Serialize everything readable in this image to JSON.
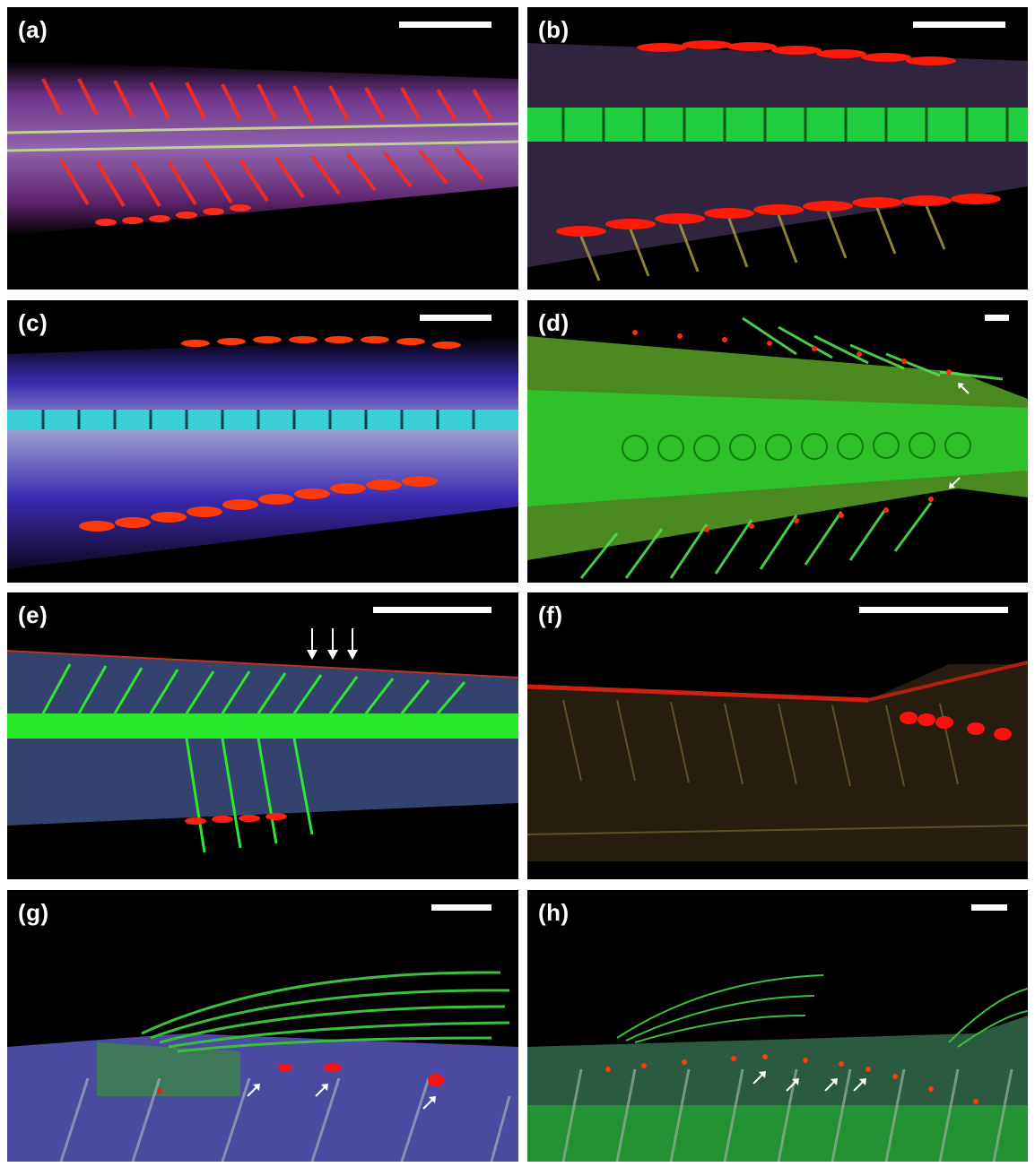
{
  "figure": {
    "panels": [
      {
        "label": "(a)",
        "stain": "magenta-red",
        "scalebar": true
      },
      {
        "label": "(b)",
        "stain": "green-red",
        "scalebar": true
      },
      {
        "label": "(c)",
        "stain": "blue-cyan-red",
        "scalebar": true
      },
      {
        "label": "(d)",
        "stain": "green-red",
        "scalebar": true
      },
      {
        "label": "(e)",
        "stain": "blue-green-red",
        "scalebar": true
      },
      {
        "label": "(f)",
        "stain": "red-yellow",
        "scalebar": true
      },
      {
        "label": "(g)",
        "stain": "blue-green-red",
        "scalebar": true
      },
      {
        "label": "(h)",
        "stain": "green-red",
        "scalebar": true
      }
    ],
    "colors": {
      "background": "#000000",
      "frame": "#ffffff",
      "bone_red": "#ff1a0a",
      "cartilage_green": "#22dd22",
      "tissue_blue": "#4433cc",
      "tissue_magenta": "#a040b0",
      "arrow": "#ffffff"
    },
    "icons": [
      "arrow-icon",
      "scalebar"
    ]
  }
}
